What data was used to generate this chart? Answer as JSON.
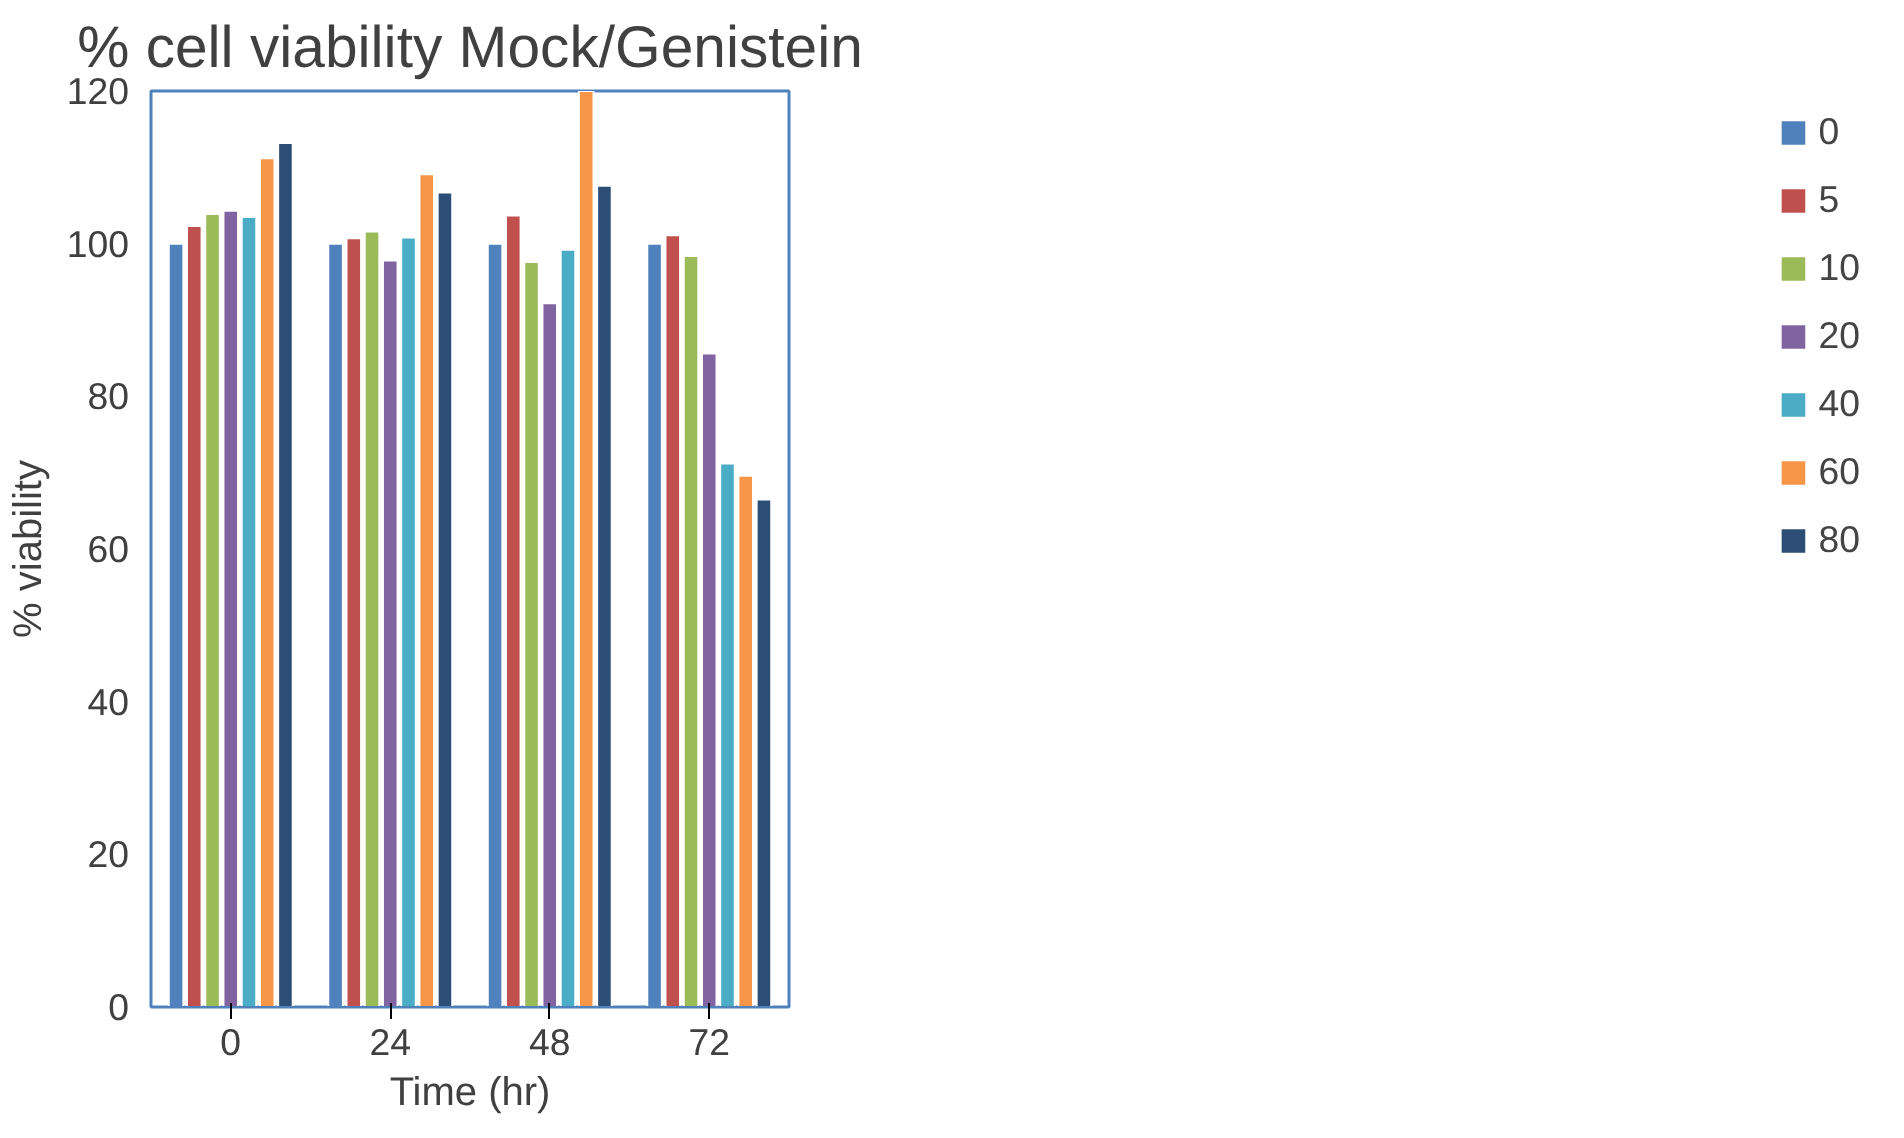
{
  "chart_data": {
    "type": "bar",
    "title": "% cell viability Mock/Genistein",
    "xlabel": "Time (hr)",
    "ylabel": "% viability",
    "categories": [
      "0",
      "24",
      "48",
      "72"
    ],
    "series": [
      {
        "name": "0",
        "color": "#4f81bd",
        "values": [
          100,
          100,
          100,
          100
        ]
      },
      {
        "name": "5",
        "color": "#c0504d",
        "values": [
          102.3,
          100.7,
          103.7,
          101.1
        ]
      },
      {
        "name": "10",
        "color": "#9bbb59",
        "values": [
          103.9,
          101.6,
          97.6,
          98.4
        ]
      },
      {
        "name": "20",
        "color": "#8064a2",
        "values": [
          104.3,
          97.8,
          92.2,
          85.6
        ]
      },
      {
        "name": "40",
        "color": "#4bacc6",
        "values": [
          103.5,
          100.8,
          99.2,
          71.2
        ]
      },
      {
        "name": "60",
        "color": "#f79646",
        "values": [
          111.2,
          109.1,
          120,
          69.6
        ]
      },
      {
        "name": "80",
        "color": "#2c4d75",
        "values": [
          113.2,
          106.7,
          107.6,
          66.5
        ]
      }
    ],
    "ylim": [
      0,
      120
    ],
    "yticks": [
      0,
      20,
      40,
      60,
      80,
      100,
      120
    ],
    "grid": false,
    "legend": "right"
  }
}
